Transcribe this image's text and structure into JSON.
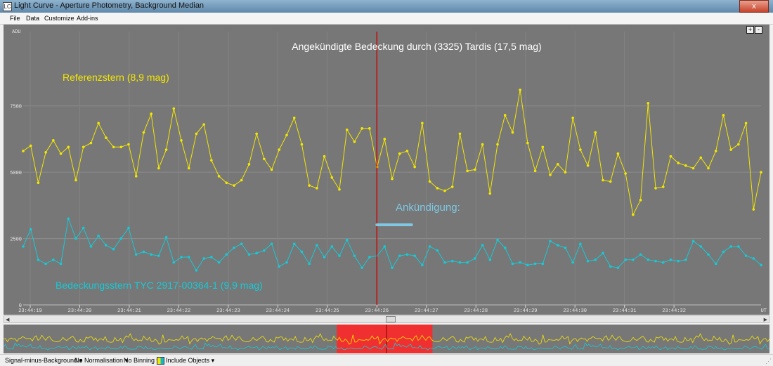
{
  "window": {
    "title": "Light Curve - Aperture Photometry, Background Median",
    "app_icon": "LC",
    "close_glyph": "x"
  },
  "menu": [
    "File",
    "Data",
    "Customize",
    "Add-ins"
  ],
  "zoom": {
    "plus": "+",
    "minus": "-"
  },
  "colors": {
    "plot_bg": "#777777",
    "reference": "#f3e600",
    "eclipse_star": "#17c9d6",
    "marker": "#cc0000",
    "highlight": "#f03030",
    "annotation": "#7ec8e3"
  },
  "chart_data": {
    "type": "line",
    "title": "Angekündigte Bedeckung durch (3325) Tardis  (17,5 mag)",
    "ylabel": "ADU",
    "xlabel": "UT",
    "yticks": [
      0,
      2500,
      5000,
      7500
    ],
    "ylim": [
      0,
      10300
    ],
    "xlim": [
      0,
      100
    ],
    "xticks": [
      "23:44:19",
      "23:44:20",
      "23:44:21",
      "23:44:22",
      "23:44:23",
      "23:44:24",
      "23:44:25",
      "23:44:26",
      "23:44:27",
      "23:44:28",
      "23:44:29",
      "23:44:30",
      "23:44:31",
      "23:44:32"
    ],
    "grid": true,
    "marker_time": "23:44:26",
    "annotations": {
      "announcement": "Ankündigung:",
      "announcement_span": [
        "23:44:26",
        "23:44:26.7"
      ]
    },
    "series": [
      {
        "name": "Referenzstern   (8,9 mag)",
        "values": [
          5800,
          6000,
          4600,
          5750,
          6200,
          5700,
          5950,
          4700,
          5950,
          6100,
          6850,
          6300,
          5950,
          5950,
          6050,
          4850,
          6500,
          7200,
          5150,
          5850,
          7400,
          6200,
          5150,
          6450,
          6800,
          5450,
          4850,
          4600,
          4500,
          4700,
          5300,
          6450,
          5500,
          5100,
          5850,
          6400,
          7050,
          6050,
          4500,
          4400,
          5600,
          4800,
          4350,
          6600,
          6150,
          6650,
          6650,
          5200,
          6250,
          4750,
          5700,
          5800,
          5200,
          6850,
          4650,
          4400,
          4300,
          4450,
          6450,
          5050,
          5100,
          6050,
          4200,
          6050,
          7150,
          6500,
          8100,
          6100,
          5050,
          5950,
          4900,
          5300,
          5000,
          7050,
          5850,
          5250,
          6500,
          4700,
          4650,
          5700,
          4950,
          3400,
          3950,
          7600,
          4400,
          4450,
          5600,
          5350,
          5250,
          5150,
          5550,
          5150,
          5800,
          7150,
          5850,
          6050,
          6850,
          3600,
          5000
        ]
      },
      {
        "name": "Bedeckungsstern TYC 2917-00364-1  (9,9 mag)",
        "values": [
          2200,
          2850,
          1700,
          1550,
          1700,
          1550,
          3250,
          2500,
          2900,
          2200,
          2600,
          2250,
          2100,
          2500,
          2900,
          1900,
          2000,
          1900,
          1850,
          2550,
          1600,
          1800,
          1800,
          1300,
          1750,
          1800,
          1600,
          1900,
          2150,
          2300,
          1900,
          1950,
          2050,
          2300,
          1450,
          1600,
          2300,
          2000,
          1550,
          2250,
          1800,
          2200,
          1850,
          2450,
          1850,
          1400,
          1800,
          1850,
          2200,
          1400,
          1850,
          1900,
          1850,
          1500,
          2200,
          2050,
          1600,
          1650,
          1600,
          1600,
          1750,
          2250,
          1700,
          2450,
          2150,
          1550,
          1600,
          1500,
          1550,
          1550,
          2400,
          2250,
          2150,
          1600,
          2300,
          1650,
          1700,
          1950,
          1450,
          1400,
          1700,
          1700,
          1900,
          1700,
          1650,
          1600,
          1700,
          1650,
          1700,
          2400,
          2200,
          1900,
          1550,
          2000,
          2200,
          2200,
          1850,
          1750,
          1500
        ]
      }
    ]
  },
  "overview": {
    "highlight_start": 0.435,
    "highlight_end": 0.56,
    "marker": 0.5
  },
  "status": {
    "mode": "Signal-minus-Background",
    "normalisation": "No Normalisation",
    "binning": "No Binning",
    "include_objects": "Include Objects",
    "caret": "▾"
  }
}
